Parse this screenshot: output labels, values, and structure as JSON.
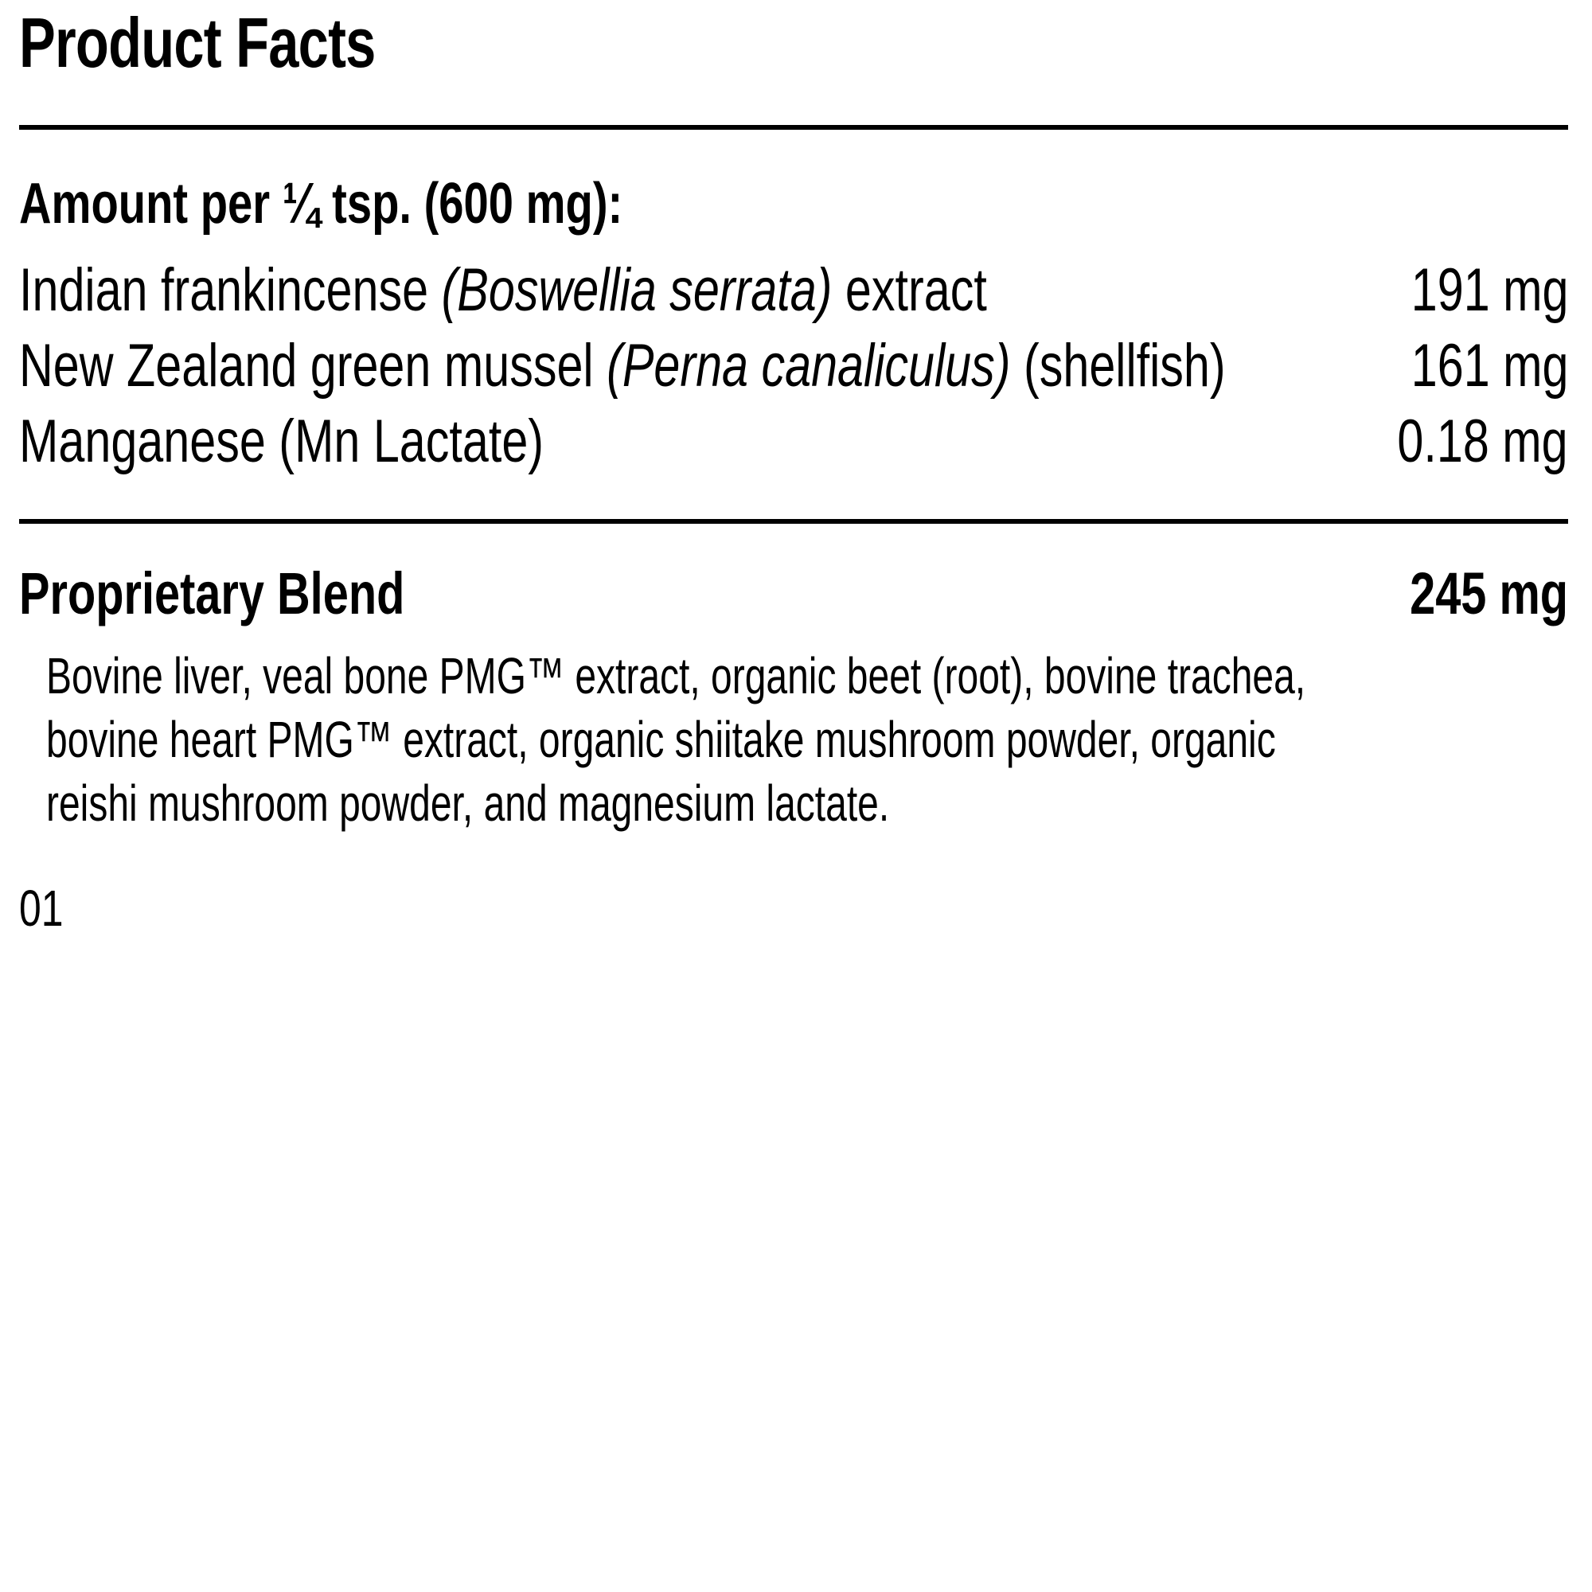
{
  "panel": {
    "title": "Product Facts",
    "serving_heading": "Amount per ¼ tsp. (600 mg):",
    "ingredients": [
      {
        "name": "Indian frankincense ",
        "latin": "(Boswellia serrata)",
        "suffix": " extract",
        "amount": "191 mg"
      },
      {
        "name": "New Zealand green mussel ",
        "latin": "(Perna canaliculus)",
        "suffix": " (shellfish)",
        "amount": "161 mg"
      },
      {
        "name": "Manganese (Mn Lactate)",
        "latin": "",
        "suffix": "",
        "amount": "0.18 mg"
      }
    ],
    "blend": {
      "label": "Proprietary Blend",
      "amount": "245 mg",
      "description": "Bovine liver, veal bone PMG™ extract, organic beet (root), bovine trachea,\nbovine heart PMG™ extract, organic shiitake mushroom powder, organic\nreishi mushroom powder, and magnesium lactate."
    },
    "footnote": "01"
  },
  "colors": {
    "text": "#000000",
    "background": "#ffffff",
    "rule": "#000000"
  }
}
